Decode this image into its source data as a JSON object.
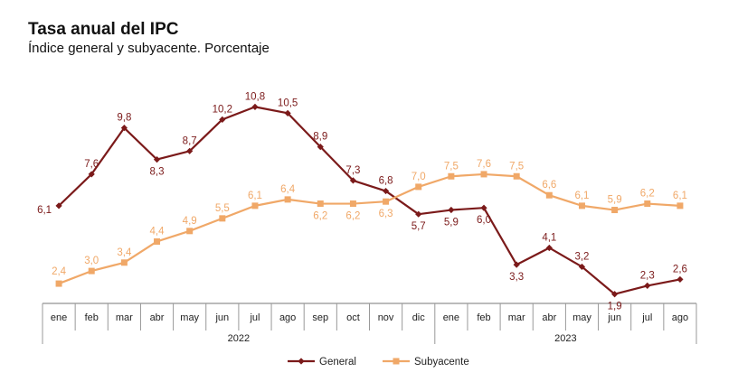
{
  "chart_data": {
    "type": "line",
    "title": "Tasa anual del IPC",
    "subtitle": "Índice general y subyacente. Porcentaje",
    "categories": [
      "ene",
      "feb",
      "mar",
      "abr",
      "may",
      "jun",
      "jul",
      "ago",
      "sep",
      "oct",
      "nov",
      "dic",
      "ene",
      "feb",
      "mar",
      "abr",
      "may",
      "jun",
      "jul",
      "ago"
    ],
    "years": [
      {
        "label": "2022",
        "start": 0,
        "end": 11
      },
      {
        "label": "2023",
        "start": 12,
        "end": 19
      }
    ],
    "ylim": [
      0,
      12
    ],
    "grid": false,
    "legend_position": "bottom",
    "series": [
      {
        "name": "General",
        "color": "#7b1a1a",
        "marker": "diamond",
        "values": [
          6.1,
          7.6,
          9.8,
          8.3,
          8.7,
          10.2,
          10.8,
          10.5,
          8.9,
          7.3,
          6.8,
          5.7,
          5.9,
          6.0,
          3.3,
          4.1,
          3.2,
          1.9,
          2.3,
          2.6
        ],
        "labels": [
          "6,1",
          "7,6",
          "9,8",
          "8,3",
          "8,7",
          "10,2",
          "10,8",
          "10,5",
          "8,9",
          "7,3",
          "6,8",
          "5,7",
          "5,9",
          "6,0",
          "3,3",
          "4,1",
          "3,2",
          "1,9",
          "2,3",
          "2,6"
        ]
      },
      {
        "name": "Subyacente",
        "color": "#f0a868",
        "marker": "square",
        "values": [
          2.4,
          3.0,
          3.4,
          4.4,
          4.9,
          5.5,
          6.1,
          6.4,
          6.2,
          6.2,
          6.3,
          7.0,
          7.5,
          7.6,
          7.5,
          6.6,
          6.1,
          5.9,
          6.2,
          6.1
        ],
        "labels": [
          "2,4",
          "3,0",
          "3,4",
          "4,4",
          "4,9",
          "5,5",
          "6,1",
          "6,4",
          "6,2",
          "6,2",
          "6,3",
          "7,0",
          "7,5",
          "7,6",
          "7,5",
          "6,6",
          "6,1",
          "5,9",
          "6,2",
          "6,1"
        ]
      }
    ]
  }
}
